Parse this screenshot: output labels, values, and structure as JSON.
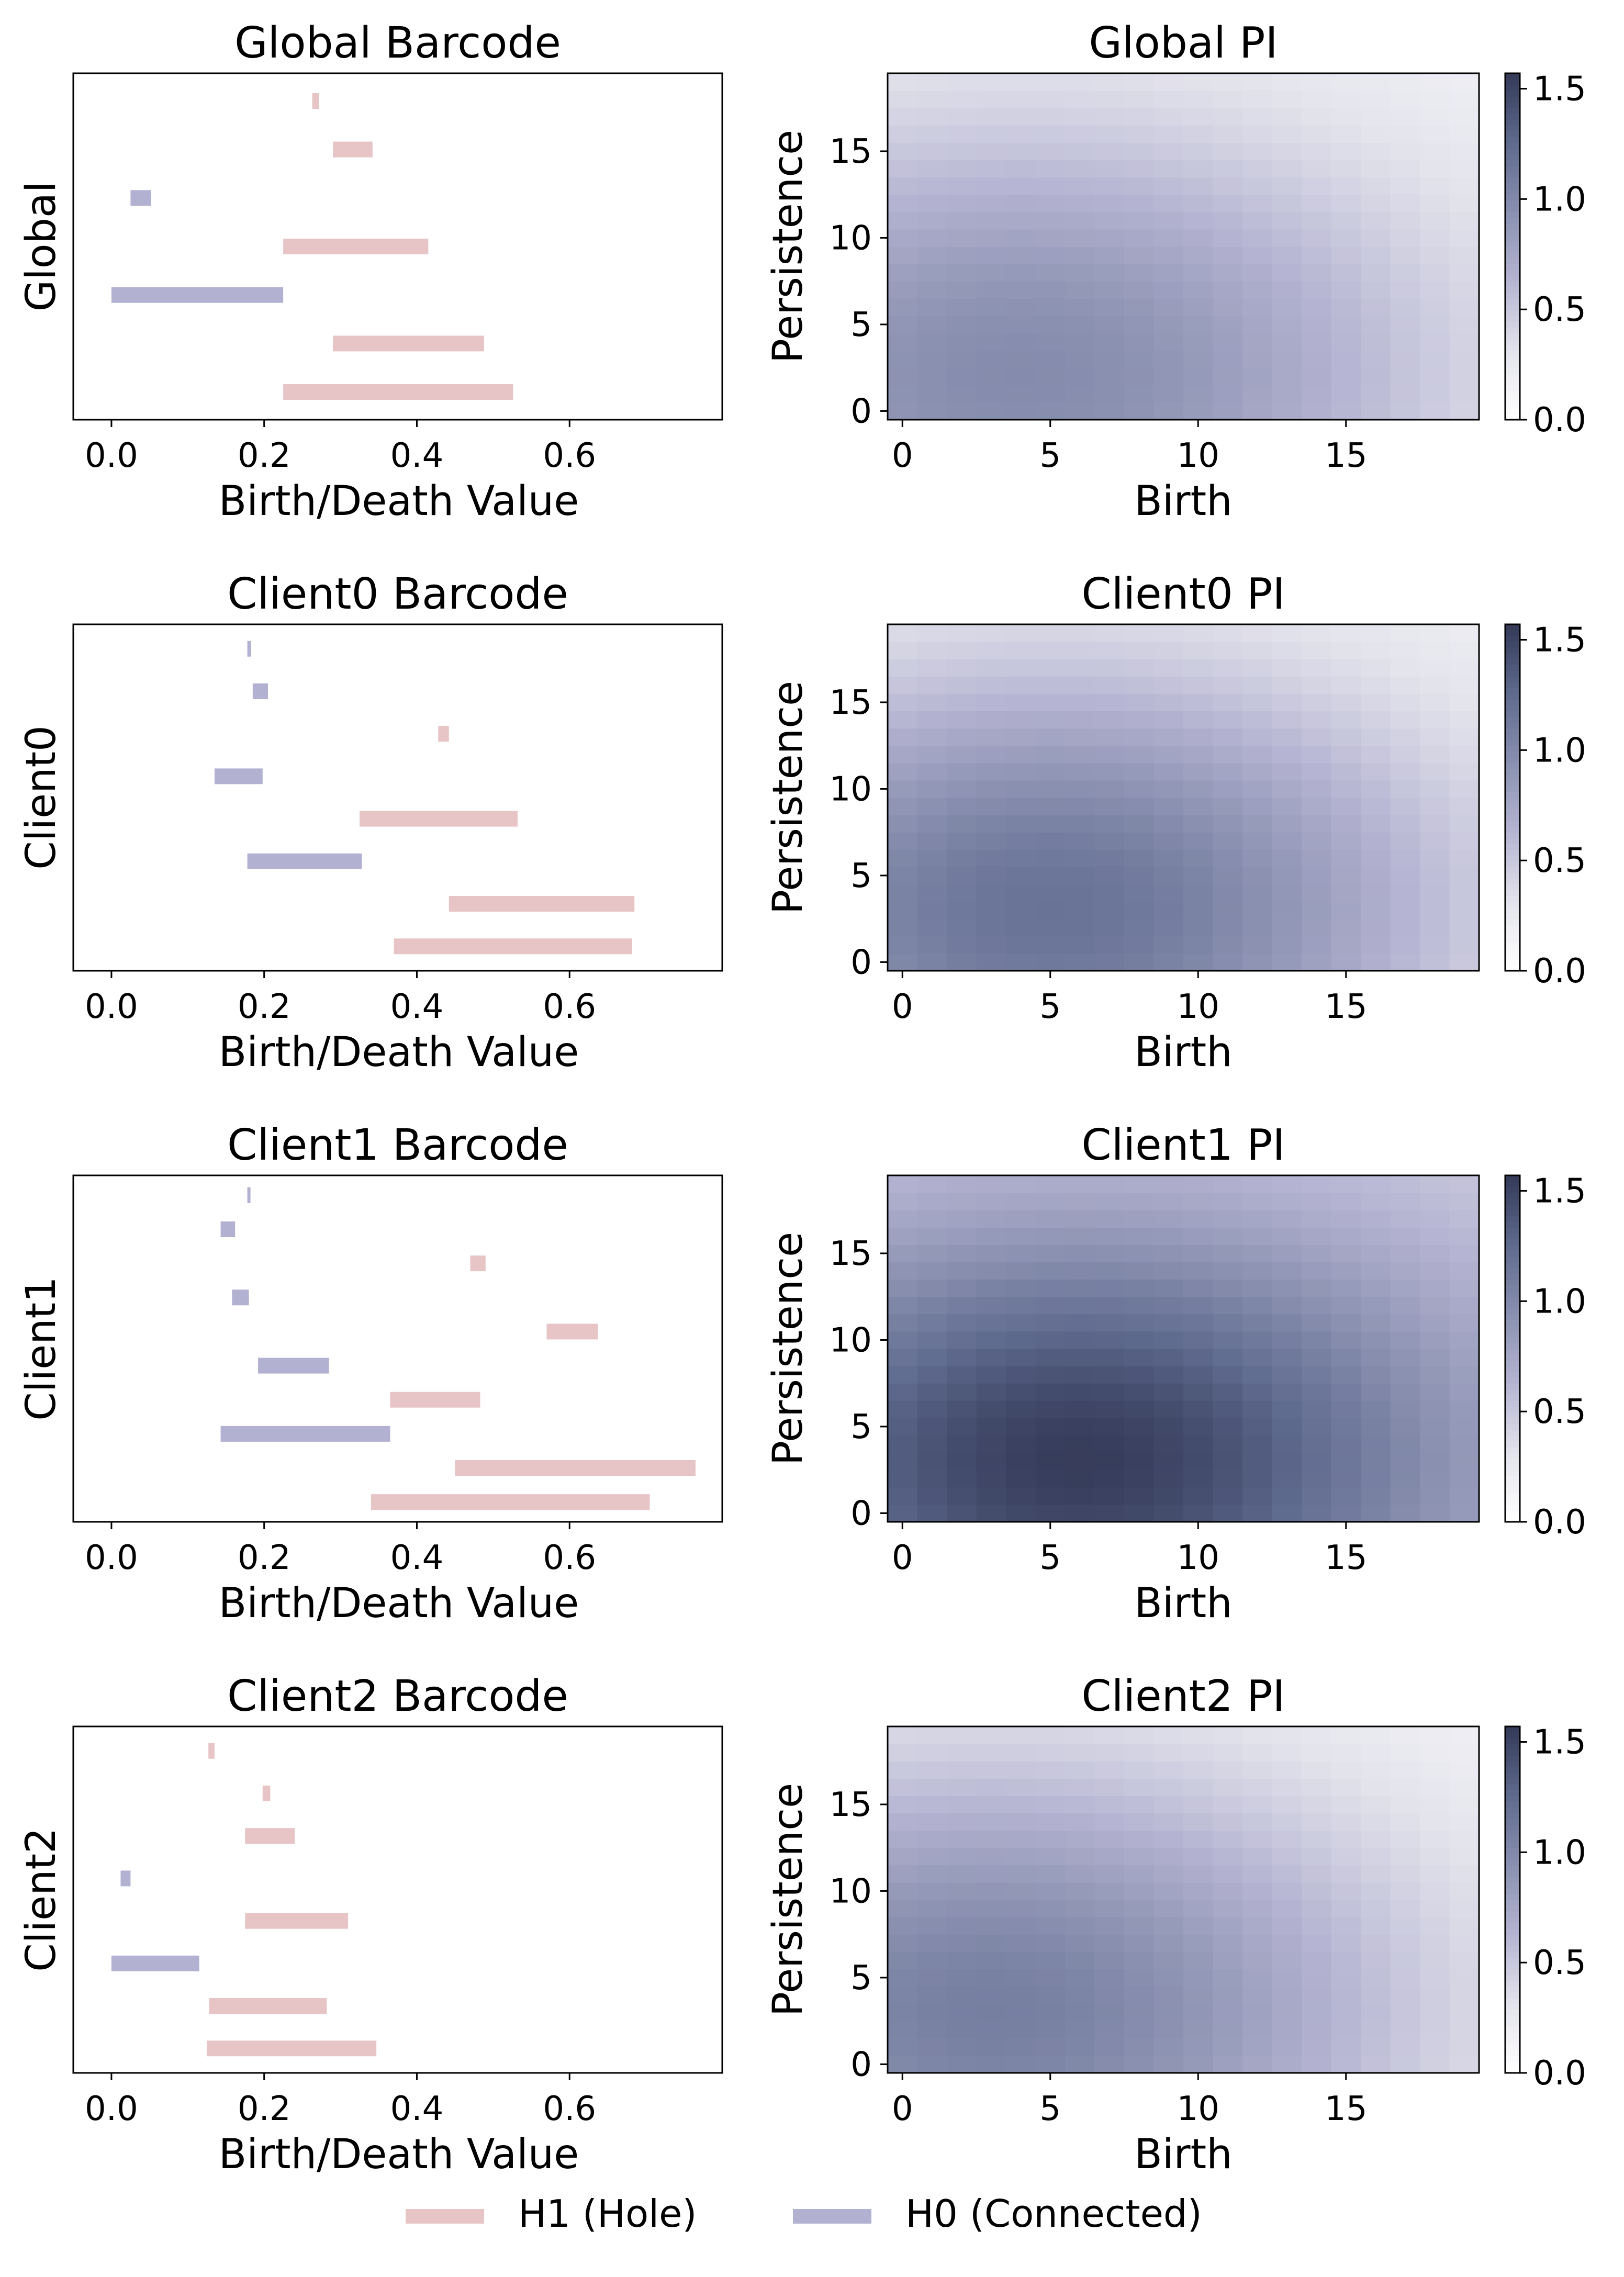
{
  "legend": {
    "entries": [
      {
        "label": "H1 (Hole)",
        "color": "#e7c4c6"
      },
      {
        "label": "H0 (Connected)",
        "color": "#b2b1d1"
      }
    ],
    "placement": "bottom-center"
  },
  "colors": {
    "h1": "#e7c4c6",
    "h0": "#b2b1d1"
  },
  "colormap": [
    "#ffffff",
    "#e3e3ec",
    "#b5b4d2",
    "#8a90b0",
    "#5e6a8e",
    "#343a58"
  ],
  "chart_data": [
    {
      "type": "bar",
      "title": "Global Barcode",
      "xlabel": "Birth/Death Value",
      "ylabel": "Global",
      "xlim": [
        -0.05,
        0.8
      ],
      "xticks": [
        "0.0",
        "0.2",
        "0.4",
        "0.6"
      ],
      "bars": [
        {
          "dim": "H1",
          "birth": 0.263,
          "death": 0.272
        },
        {
          "dim": "H1",
          "birth": 0.29,
          "death": 0.342
        },
        {
          "dim": "H0",
          "birth": 0.025,
          "death": 0.052
        },
        {
          "dim": "H1",
          "birth": 0.225,
          "death": 0.415
        },
        {
          "dim": "H0",
          "birth": 0.0,
          "death": 0.225
        },
        {
          "dim": "H1",
          "birth": 0.29,
          "death": 0.488
        },
        {
          "dim": "H1",
          "birth": 0.225,
          "death": 0.526
        }
      ]
    },
    {
      "type": "heatmap",
      "title": "Global PI",
      "xlabel": "Birth",
      "ylabel": "Persistence",
      "xticks": [
        "0",
        "5",
        "10",
        "15"
      ],
      "yticks": [
        "0",
        "5",
        "10",
        "15"
      ],
      "colorbar_ticks": [
        "0.0",
        "0.5",
        "1.0",
        "1.5"
      ],
      "colorbar_range": [
        0,
        1.57
      ],
      "grid_size": 20,
      "peak": {
        "birth": 4,
        "persistence": 2,
        "value": 0.98
      },
      "corner_value": 0.12
    },
    {
      "type": "bar",
      "title": "Client0 Barcode",
      "xlabel": "Birth/Death Value",
      "ylabel": "Client0",
      "xlim": [
        -0.05,
        0.8
      ],
      "xticks": [
        "0.0",
        "0.2",
        "0.4",
        "0.6"
      ],
      "bars": [
        {
          "dim": "H0",
          "birth": 0.178,
          "death": 0.183
        },
        {
          "dim": "H0",
          "birth": 0.185,
          "death": 0.205
        },
        {
          "dim": "H1",
          "birth": 0.428,
          "death": 0.442
        },
        {
          "dim": "H0",
          "birth": 0.135,
          "death": 0.198
        },
        {
          "dim": "H1",
          "birth": 0.325,
          "death": 0.532
        },
        {
          "dim": "H0",
          "birth": 0.178,
          "death": 0.328
        },
        {
          "dim": "H1",
          "birth": 0.442,
          "death": 0.685
        },
        {
          "dim": "H1",
          "birth": 0.37,
          "death": 0.682
        }
      ]
    },
    {
      "type": "heatmap",
      "title": "Client0 PI",
      "xlabel": "Birth",
      "ylabel": "Persistence",
      "xticks": [
        "0",
        "5",
        "10",
        "15"
      ],
      "yticks": [
        "0",
        "5",
        "10",
        "15"
      ],
      "colorbar_ticks": [
        "0.0",
        "0.5",
        "1.0",
        "1.5"
      ],
      "colorbar_range": [
        0,
        1.57
      ],
      "grid_size": 20,
      "peak": {
        "birth": 5,
        "persistence": 3,
        "value": 1.18
      },
      "corner_value": 0.12
    },
    {
      "type": "bar",
      "title": "Client1 Barcode",
      "xlabel": "Birth/Death Value",
      "ylabel": "Client1",
      "xlim": [
        -0.05,
        0.8
      ],
      "xticks": [
        "0.0",
        "0.2",
        "0.4",
        "0.6"
      ],
      "bars": [
        {
          "dim": "H0",
          "birth": 0.178,
          "death": 0.181
        },
        {
          "dim": "H0",
          "birth": 0.143,
          "death": 0.162
        },
        {
          "dim": "H1",
          "birth": 0.47,
          "death": 0.49
        },
        {
          "dim": "H0",
          "birth": 0.158,
          "death": 0.18
        },
        {
          "dim": "H1",
          "birth": 0.57,
          "death": 0.637
        },
        {
          "dim": "H0",
          "birth": 0.192,
          "death": 0.285
        },
        {
          "dim": "H1",
          "birth": 0.365,
          "death": 0.483
        },
        {
          "dim": "H0",
          "birth": 0.143,
          "death": 0.365
        },
        {
          "dim": "H1",
          "birth": 0.45,
          "death": 0.765
        },
        {
          "dim": "H1",
          "birth": 0.34,
          "death": 0.705
        }
      ]
    },
    {
      "type": "heatmap",
      "title": "Client1 PI",
      "xlabel": "Birth",
      "ylabel": "Persistence",
      "xticks": [
        "0",
        "5",
        "10",
        "15"
      ],
      "yticks": [
        "0",
        "5",
        "10",
        "15"
      ],
      "colorbar_ticks": [
        "0.0",
        "0.5",
        "1.0",
        "1.5"
      ],
      "colorbar_range": [
        0,
        1.57
      ],
      "grid_size": 20,
      "peak": {
        "birth": 6,
        "persistence": 3,
        "value": 1.55
      },
      "corner_value": 0.42
    },
    {
      "type": "bar",
      "title": "Client2 Barcode",
      "xlabel": "Birth/Death Value",
      "ylabel": "Client2",
      "xlim": [
        -0.05,
        0.8
      ],
      "xticks": [
        "0.0",
        "0.2",
        "0.4",
        "0.6"
      ],
      "bars": [
        {
          "dim": "H1",
          "birth": 0.127,
          "death": 0.135
        },
        {
          "dim": "H1",
          "birth": 0.198,
          "death": 0.208
        },
        {
          "dim": "H1",
          "birth": 0.175,
          "death": 0.24
        },
        {
          "dim": "H0",
          "birth": 0.012,
          "death": 0.025
        },
        {
          "dim": "H1",
          "birth": 0.175,
          "death": 0.31
        },
        {
          "dim": "H0",
          "birth": 0.0,
          "death": 0.115
        },
        {
          "dim": "H1",
          "birth": 0.128,
          "death": 0.282
        },
        {
          "dim": "H1",
          "birth": 0.125,
          "death": 0.347
        }
      ]
    },
    {
      "type": "heatmap",
      "title": "Client2 PI",
      "xlabel": "Birth",
      "ylabel": "Persistence",
      "xticks": [
        "0",
        "5",
        "10",
        "15"
      ],
      "yticks": [
        "0",
        "5",
        "10",
        "15"
      ],
      "colorbar_ticks": [
        "0.0",
        "0.5",
        "1.0",
        "1.5"
      ],
      "colorbar_range": [
        0,
        1.57
      ],
      "grid_size": 20,
      "peak": {
        "birth": 3,
        "persistence": 3,
        "value": 1.08
      },
      "corner_value": 0.1
    }
  ]
}
